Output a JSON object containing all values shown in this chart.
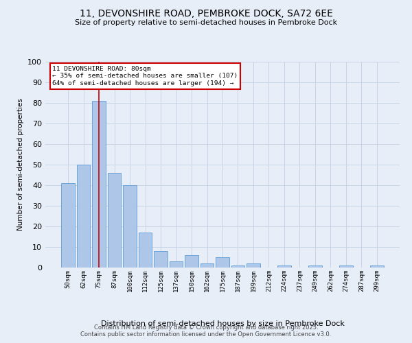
{
  "title1": "11, DEVONSHIRE ROAD, PEMBROKE DOCK, SA72 6EE",
  "title2": "Size of property relative to semi-detached houses in Pembroke Dock",
  "xlabel": "Distribution of semi-detached houses by size in Pembroke Dock",
  "ylabel": "Number of semi-detached properties",
  "categories": [
    "50sqm",
    "62sqm",
    "75sqm",
    "87sqm",
    "100sqm",
    "112sqm",
    "125sqm",
    "137sqm",
    "150sqm",
    "162sqm",
    "175sqm",
    "187sqm",
    "199sqm",
    "212sqm",
    "224sqm",
    "237sqm",
    "249sqm",
    "262sqm",
    "274sqm",
    "287sqm",
    "299sqm"
  ],
  "values": [
    41,
    50,
    81,
    46,
    40,
    17,
    8,
    3,
    6,
    2,
    5,
    1,
    2,
    0,
    1,
    0,
    1,
    0,
    1,
    0,
    1
  ],
  "bar_color": "#aec6e8",
  "bar_edge_color": "#5b9bd5",
  "grid_color": "#c8d4e8",
  "bg_color": "#e8eef8",
  "vline_x": 2,
  "vline_color": "#cc0000",
  "annotation_title": "11 DEVONSHIRE ROAD: 80sqm",
  "annotation_line1": "← 35% of semi-detached houses are smaller (107)",
  "annotation_line2": "64% of semi-detached houses are larger (194) →",
  "annotation_box_color": "#ffffff",
  "annotation_edge_color": "#cc0000",
  "footer1": "Contains HM Land Registry data © Crown copyright and database right 2025.",
  "footer2": "Contains public sector information licensed under the Open Government Licence v3.0.",
  "ylim": [
    0,
    100
  ],
  "yticks": [
    0,
    10,
    20,
    30,
    40,
    50,
    60,
    70,
    80,
    90,
    100
  ]
}
